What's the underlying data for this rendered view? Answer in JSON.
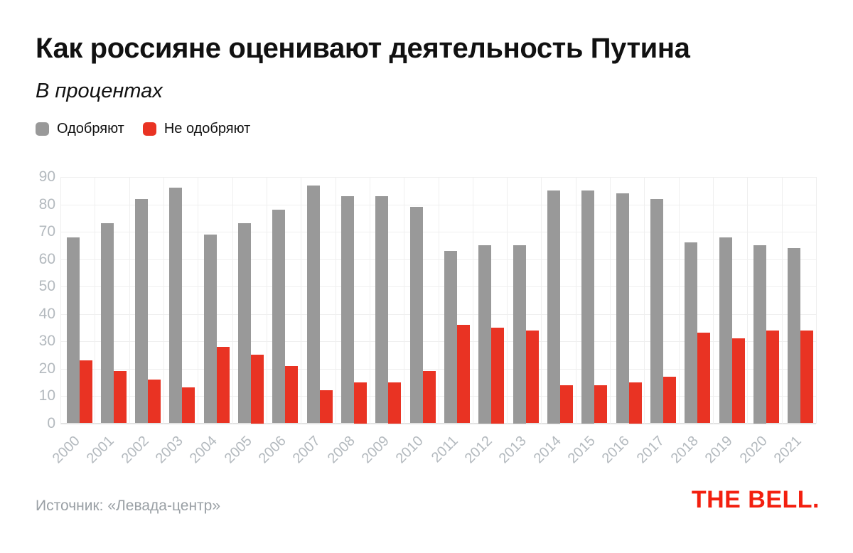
{
  "title": "Как россияне оценивают деятельность Путина",
  "subtitle": "В процентах",
  "source": "Источник: «Левада-центр»",
  "logo_text": "THE BELL.",
  "colors": {
    "approve": "#999999",
    "disapprove": "#e93323",
    "grid": "#efefef",
    "axis_line": "#e2e2e2",
    "axis_label": "#b3b9be",
    "source_text": "#9aa0a5",
    "logo_red": "#f31f0f",
    "heading_text": "#111111"
  },
  "chart_data": {
    "type": "bar",
    "title": "Как россияне оценивают деятельность Путина",
    "subtitle": "В процентах",
    "xlabel": "",
    "ylabel": "",
    "ylim": [
      0,
      90
    ],
    "yticks": [
      0,
      10,
      20,
      30,
      40,
      50,
      60,
      70,
      80,
      90
    ],
    "grid": true,
    "legend_position": "top-left",
    "categories": [
      "2000",
      "2001",
      "2002",
      "2003",
      "2004",
      "2005",
      "2006",
      "2007",
      "2008",
      "2009",
      "2010",
      "2011",
      "2012",
      "2013",
      "2014",
      "2015",
      "2016",
      "2017",
      "2018",
      "2019",
      "2020",
      "2021"
    ],
    "series": [
      {
        "name": "Одобряют",
        "color": "#999999",
        "values": [
          68,
          73,
          82,
          86,
          69,
          73,
          78,
          87,
          83,
          83,
          79,
          63,
          65,
          65,
          85,
          85,
          84,
          82,
          66,
          68,
          65,
          64
        ]
      },
      {
        "name": "Не одобряют",
        "color": "#e93323",
        "values": [
          23,
          19,
          16,
          13,
          28,
          25,
          21,
          12,
          15,
          15,
          19,
          36,
          35,
          34,
          14,
          14,
          15,
          17,
          33,
          31,
          34,
          34
        ]
      }
    ]
  }
}
